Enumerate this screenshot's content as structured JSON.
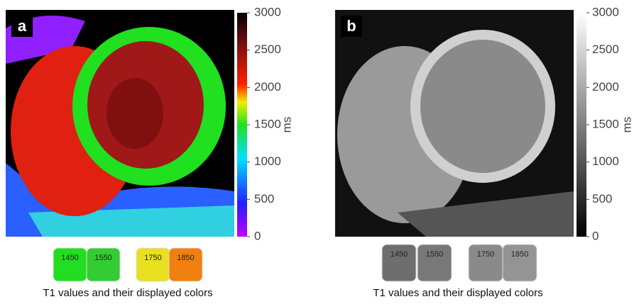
{
  "panels": [
    {
      "label": "a",
      "colorbar": {
        "lim": [
          0,
          3000
        ],
        "ticks": [
          0,
          500,
          1000,
          1500,
          2000,
          2500,
          3000
        ],
        "unit": "ms"
      },
      "swatches": [
        {
          "label": "1450",
          "color": "#22dd22"
        },
        {
          "label": "1550",
          "color": "#33cc33"
        },
        {
          "label": "1750",
          "color": "#e8e020"
        },
        {
          "label": "1850",
          "color": "#f08010"
        }
      ],
      "caption": "T1 values and their displayed colors"
    },
    {
      "label": "b",
      "colorbar": {
        "lim": [
          0,
          3000
        ],
        "ticks": [
          0,
          500,
          1000,
          1500,
          2000,
          2500,
          3000
        ],
        "unit": "ms"
      },
      "swatches": [
        {
          "label": "1450",
          "color": "#6e6e6e"
        },
        {
          "label": "1550",
          "color": "#787878"
        },
        {
          "label": "1750",
          "color": "#8a8a8a"
        },
        {
          "label": "1850",
          "color": "#949494"
        }
      ],
      "caption": "T1 values and their displayed colors"
    }
  ]
}
